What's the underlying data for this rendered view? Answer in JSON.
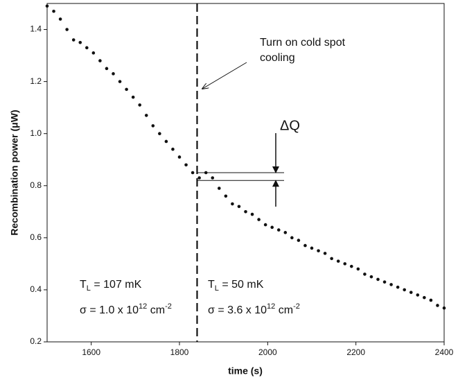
{
  "chart_data": {
    "type": "scatter",
    "x_label": "time (s)",
    "y_label": "Recombination power (μW)",
    "xlim": [
      1500,
      2400
    ],
    "xticks": [
      1600,
      1800,
      2000,
      2200,
      2400
    ],
    "ylim": [
      0.2,
      1.5
    ],
    "yticks": [
      {
        "value": 0.2,
        "label": "0.2"
      },
      {
        "value": 0.4,
        "label": "0.4"
      },
      {
        "value": 0.6,
        "label": "0.6"
      },
      {
        "value": 0.8,
        "label": "0.8"
      },
      {
        "value": 1.0,
        "label": "1.0"
      },
      {
        "value": 1.2,
        "label": "1.2"
      },
      {
        "value": 1.4,
        "label": "1.4"
      }
    ],
    "color": "#111111",
    "x": [
      1500,
      1515,
      1530,
      1545,
      1560,
      1575,
      1590,
      1605,
      1620,
      1635,
      1650,
      1665,
      1680,
      1695,
      1710,
      1725,
      1740,
      1755,
      1770,
      1785,
      1800,
      1815,
      1830,
      1845,
      1860,
      1875,
      1890,
      1905,
      1920,
      1935,
      1950,
      1965,
      1980,
      1995,
      2010,
      2025,
      2040,
      2055,
      2070,
      2085,
      2100,
      2115,
      2130,
      2145,
      2160,
      2175,
      2190,
      2205,
      2220,
      2235,
      2250,
      2265,
      2280,
      2295,
      2310,
      2325,
      2340,
      2355,
      2370,
      2385,
      2400
    ],
    "values": [
      1.49,
      1.47,
      1.44,
      1.4,
      1.36,
      1.35,
      1.33,
      1.31,
      1.28,
      1.25,
      1.23,
      1.2,
      1.17,
      1.14,
      1.11,
      1.07,
      1.03,
      1.0,
      0.97,
      0.94,
      0.91,
      0.88,
      0.85,
      0.83,
      0.85,
      0.83,
      0.79,
      0.76,
      0.73,
      0.72,
      0.7,
      0.69,
      0.67,
      0.65,
      0.64,
      0.63,
      0.62,
      0.6,
      0.59,
      0.57,
      0.56,
      0.55,
      0.54,
      0.52,
      0.51,
      0.5,
      0.49,
      0.48,
      0.46,
      0.45,
      0.44,
      0.43,
      0.42,
      0.41,
      0.4,
      0.39,
      0.38,
      0.37,
      0.36,
      0.34,
      0.33
    ],
    "vline": 1840,
    "delta_q_levels": [
      0.85,
      0.82
    ],
    "annotations": {
      "cooling_note": [
        "Turn on cold spot",
        "cooling"
      ],
      "delta_q": "ΔQ",
      "left_temp": [
        {
          "text": "T"
        },
        {
          "text": "L",
          "shift": "sub"
        },
        {
          "text": " = 107 mK"
        }
      ],
      "left_sigma": [
        {
          "text": "σ = 1.0 x 10"
        },
        {
          "text": "12",
          "shift": "super"
        },
        {
          "text": " cm"
        },
        {
          "text": "-2",
          "shift": "super"
        }
      ],
      "right_temp": [
        {
          "text": "T"
        },
        {
          "text": "L",
          "shift": "sub"
        },
        {
          "text": " = 50 mK"
        }
      ],
      "right_sigma": [
        {
          "text": "σ = 3.6 x 10"
        },
        {
          "text": "12",
          "shift": "super"
        },
        {
          "text": " cm"
        },
        {
          "text": "-2",
          "shift": "super"
        }
      ]
    }
  }
}
